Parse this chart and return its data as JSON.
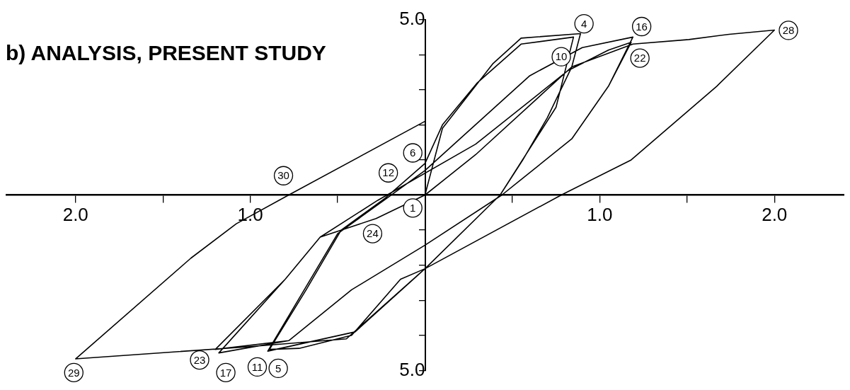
{
  "chart_data": {
    "type": "line",
    "title": "b) ANALYSIS, PRESENT STUDY",
    "xlim": [
      -2.4,
      2.4
    ],
    "ylim": [
      -5,
      5
    ],
    "xticks": [
      {
        "value": -2,
        "label": "2.0"
      },
      {
        "value": -1.5,
        "label": null
      },
      {
        "value": -1,
        "label": "1.0"
      },
      {
        "value": -0.5,
        "label": null
      },
      {
        "value": 0.5,
        "label": null
      },
      {
        "value": 1,
        "label": "1.0"
      },
      {
        "value": 1.5,
        "label": null
      },
      {
        "value": 2,
        "label": "2.0"
      }
    ],
    "yticks": [
      {
        "value": -5,
        "label": "5.0"
      },
      {
        "value": -4,
        "label": null
      },
      {
        "value": -3,
        "label": null
      },
      {
        "value": -2,
        "label": null
      },
      {
        "value": -1,
        "label": null
      },
      {
        "value": 1,
        "label": null
      },
      {
        "value": 2,
        "label": null
      },
      {
        "value": 3,
        "label": null
      },
      {
        "value": 4,
        "label": null
      },
      {
        "value": 5,
        "label": "5.0"
      }
    ],
    "series": [
      {
        "color": "#000000",
        "x": [
          0,
          0.1,
          0.39,
          0.55,
          0.89,
          0.84,
          0.7,
          0.56,
          0.43,
          0,
          -0.14,
          -0.42,
          -0.72,
          -0.89,
          -0.68,
          -0.48,
          -0.23,
          0,
          0.1,
          0.3,
          0.55,
          0.85,
          0.75,
          0.43,
          0,
          -0.4,
          -0.9,
          -0.5,
          -0.22,
          0,
          0.2,
          0.6,
          0.9,
          1.19,
          1.05,
          0.84,
          0.44,
          0,
          -0.42,
          -0.78,
          -1.18,
          -0.8,
          -0.6,
          -0.27,
          0.29,
          0.82,
          1.05,
          1.18,
          1.05,
          0.84,
          0.44,
          0,
          -0.42,
          -0.78,
          -1.2,
          -0.8,
          -0.6,
          -0.28,
          0,
          0.29,
          0.84,
          1.19,
          1.51,
          1.74,
          2.0,
          1.67,
          1.18,
          0.78,
          0,
          -0.45,
          -1.03,
          -2.0,
          -1.34,
          -1.08,
          -0.78,
          0
        ],
        "values": [
          0,
          1.9,
          3.75,
          4.47,
          4.6,
          3.65,
          2.2,
          1.0,
          0,
          -2.1,
          -2.4,
          -4.0,
          -4.37,
          -4.4,
          -2.7,
          -1.0,
          -0.1,
          0.9,
          2.0,
          3.2,
          4.3,
          4.5,
          2.5,
          0,
          -2.1,
          -3.9,
          -4.45,
          -1.1,
          -0.1,
          0.7,
          1.6,
          3.4,
          4.2,
          4.5,
          3.1,
          1.6,
          0,
          -1.43,
          -2.7,
          -4.15,
          -4.5,
          -2.4,
          -1.2,
          -0.15,
          1.45,
          3.55,
          4.13,
          4.35,
          3.1,
          1.6,
          0,
          -1.43,
          -2.7,
          -4.15,
          -4.4,
          -2.4,
          -1.2,
          -0.67,
          0,
          1.15,
          3.65,
          4.3,
          4.43,
          4.58,
          4.7,
          3.1,
          1.0,
          0,
          -2.1,
          -4.1,
          -4.33,
          -4.67,
          -1.8,
          -0.82,
          0,
          2.1
        ]
      }
    ],
    "marker": "none",
    "line_style": "solid",
    "grid": false,
    "legend": false,
    "annotations": [
      {
        "text": "1",
        "x": -0.07,
        "y": -0.37
      },
      {
        "text": "4",
        "x": 0.91,
        "y": 4.88
      },
      {
        "text": "5",
        "x": -0.84,
        "y": -4.94
      },
      {
        "text": "6",
        "x": -0.07,
        "y": 1.2
      },
      {
        "text": "10",
        "x": 0.78,
        "y": 3.94
      },
      {
        "text": "11",
        "x": -0.96,
        "y": -4.9
      },
      {
        "text": "12",
        "x": -0.21,
        "y": 0.63
      },
      {
        "text": "16",
        "x": 1.24,
        "y": 4.8
      },
      {
        "text": "17",
        "x": -1.14,
        "y": -5.06
      },
      {
        "text": "22",
        "x": 1.23,
        "y": 3.9
      },
      {
        "text": "23",
        "x": -1.29,
        "y": -4.7
      },
      {
        "text": "24",
        "x": -0.3,
        "y": -1.1
      },
      {
        "text": "28",
        "x": 2.08,
        "y": 4.69
      },
      {
        "text": "29",
        "x": -2.01,
        "y": -5.06
      },
      {
        "text": "30",
        "x": -0.81,
        "y": 0.55
      }
    ]
  }
}
